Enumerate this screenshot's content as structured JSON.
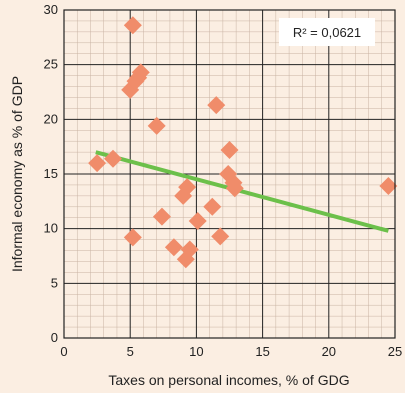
{
  "chart_data": {
    "type": "scatter",
    "title": "",
    "xlabel": "Taxes on personal incomes, % of GDG",
    "ylabel": "Informal economy as % of GDP",
    "xlim": [
      0,
      25
    ],
    "ylim": [
      0,
      30
    ],
    "x_ticks": [
      "0",
      "5",
      "10",
      "15",
      "20",
      "25"
    ],
    "y_ticks": [
      "0",
      "5",
      "10",
      "15",
      "20",
      "25",
      "30"
    ],
    "grid": true,
    "marker": "diamond",
    "marker_color": "#f08c6a",
    "trend_color": "#6cc04a",
    "grid_color": "#c9b3a3",
    "major_grid_color": "#222222",
    "background_color": "#fbeee2",
    "annotation": "R² = 0,0621",
    "points": [
      {
        "x": 2.5,
        "y": 16.0
      },
      {
        "x": 3.7,
        "y": 16.4
      },
      {
        "x": 5.2,
        "y": 28.6
      },
      {
        "x": 5.0,
        "y": 22.7
      },
      {
        "x": 5.4,
        "y": 23.5
      },
      {
        "x": 5.6,
        "y": 23.8
      },
      {
        "x": 5.8,
        "y": 24.3
      },
      {
        "x": 5.2,
        "y": 9.2
      },
      {
        "x": 7.0,
        "y": 19.4
      },
      {
        "x": 7.4,
        "y": 11.1
      },
      {
        "x": 8.3,
        "y": 8.3
      },
      {
        "x": 9.0,
        "y": 13.0
      },
      {
        "x": 9.2,
        "y": 7.2
      },
      {
        "x": 9.3,
        "y": 13.8
      },
      {
        "x": 9.5,
        "y": 8.1
      },
      {
        "x": 10.1,
        "y": 10.7
      },
      {
        "x": 11.2,
        "y": 12.0
      },
      {
        "x": 11.5,
        "y": 21.3
      },
      {
        "x": 11.8,
        "y": 9.3
      },
      {
        "x": 12.4,
        "y": 15.0
      },
      {
        "x": 12.5,
        "y": 17.2
      },
      {
        "x": 12.8,
        "y": 14.2
      },
      {
        "x": 12.9,
        "y": 13.7
      },
      {
        "x": 24.5,
        "y": 13.9
      }
    ],
    "trendline": [
      {
        "x": 2.4,
        "y": 17.0
      },
      {
        "x": 24.5,
        "y": 9.8
      }
    ]
  }
}
